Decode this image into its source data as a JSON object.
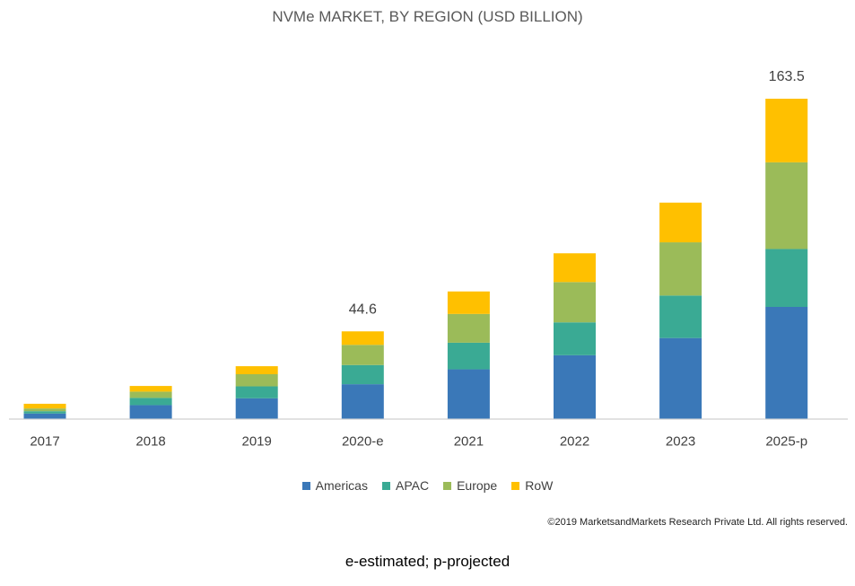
{
  "chart_data": {
    "type": "bar",
    "stacked": true,
    "title": "NVMe MARKET, BY REGION (USD BILLION)",
    "categories": [
      "2017",
      "2018",
      "2019",
      "2020-e",
      "2021",
      "2022",
      "2023",
      "2025-p"
    ],
    "series": [
      {
        "name": "Americas",
        "color": "#3a78b8",
        "values": [
          2.6,
          6.9,
          10.4,
          17.6,
          25.2,
          32.4,
          41.2,
          57.1
        ]
      },
      {
        "name": "APAC",
        "color": "#3aaa94",
        "values": [
          1.2,
          3.7,
          6.1,
          9.8,
          13.6,
          16.8,
          21.7,
          29.6
        ]
      },
      {
        "name": "Europe",
        "color": "#9bbb59",
        "values": [
          1.4,
          3.2,
          6.2,
          10.3,
          14.7,
          20.6,
          27.2,
          44.3
        ]
      },
      {
        "name": "RoW",
        "color": "#ffc000",
        "values": [
          2.4,
          2.9,
          4.1,
          6.9,
          11.5,
          14.7,
          20.3,
          32.5
        ]
      }
    ],
    "data_labels": [
      {
        "category": "2020-e",
        "text": "44.6"
      },
      {
        "category": "2025-p",
        "text": "163.5"
      }
    ],
    "ylim": [
      0,
      163.5
    ],
    "grid": false,
    "legend_position": "bottom"
  },
  "copyright": "©2019 MarketsandMarkets  Research Private Ltd. All rights  reserved.",
  "footnote": "e-estimated; p-projected"
}
